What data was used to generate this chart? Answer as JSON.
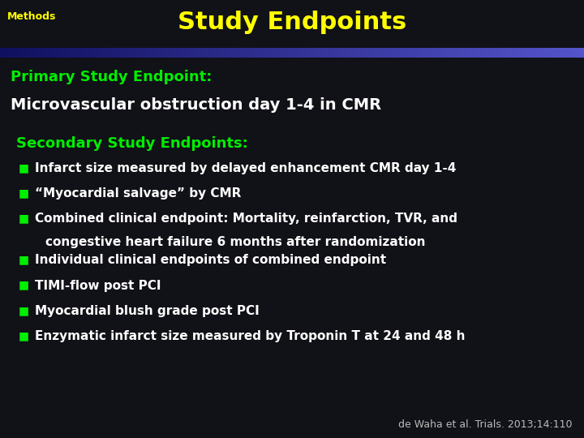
{
  "title": "Study Endpoints",
  "title_color": "#FFFF00",
  "title_fontsize": 22,
  "section_label": "Methods",
  "section_label_color": "#FFFF00",
  "section_label_fontsize": 9,
  "bg_color": "#111118",
  "primary_label": "Primary Study Endpoint:",
  "primary_label_color": "#00ee00",
  "primary_label_fontsize": 13,
  "primary_text": "Microvascular obstruction day 1-4 in CMR",
  "primary_text_color": "#ffffff",
  "primary_text_fontsize": 14,
  "secondary_label": "Secondary Study Endpoints:",
  "secondary_label_color": "#00ee00",
  "secondary_label_fontsize": 13,
  "bullet_symbol_color": "#00ee00",
  "bullet_text_color": "#ffffff",
  "bullet_fontsize": 11,
  "bullets": [
    "Infarct size measured by delayed enhancement CMR day 1-4",
    "“Myocardial salvage” by CMR",
    "Combined clinical endpoint: Mortality, reinfarction, TVR, and",
    "Individual clinical endpoints of combined endpoint",
    "TIMI-flow post PCI",
    "Myocardial blush grade post PCI",
    "Enzymatic infarct size measured by Troponin T at 24 and 48 h"
  ],
  "bullet3_wrap": "   congestive heart failure 6 months after randomization",
  "footnote": "de Waha et al. Trials. 2013;14:110",
  "footnote_color": "#bbbbbb",
  "footnote_fontsize": 9
}
